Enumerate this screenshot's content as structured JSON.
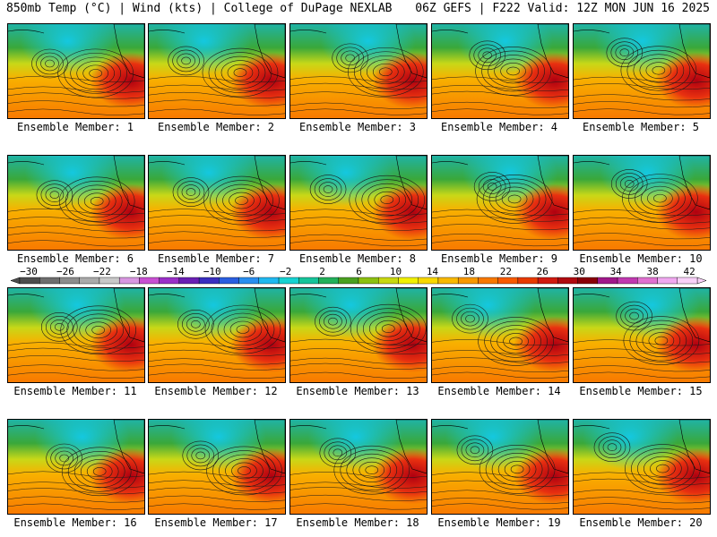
{
  "header": {
    "left_title": "850mb Temp (°C) | Wind (kts) | College of DuPage NEXLAB",
    "right_title": "06Z GEFS | F222 Valid: 12Z MON JUN 16 2025"
  },
  "members": [
    {
      "label": "Ensemble Member: 1"
    },
    {
      "label": "Ensemble Member: 2"
    },
    {
      "label": "Ensemble Member: 3"
    },
    {
      "label": "Ensemble Member: 4"
    },
    {
      "label": "Ensemble Member: 5"
    },
    {
      "label": "Ensemble Member: 6"
    },
    {
      "label": "Ensemble Member: 7"
    },
    {
      "label": "Ensemble Member: 8"
    },
    {
      "label": "Ensemble Member: 9"
    },
    {
      "label": "Ensemble Member: 10"
    },
    {
      "label": "Ensemble Member: 11"
    },
    {
      "label": "Ensemble Member: 12"
    },
    {
      "label": "Ensemble Member: 13"
    },
    {
      "label": "Ensemble Member: 14"
    },
    {
      "label": "Ensemble Member: 15"
    },
    {
      "label": "Ensemble Member: 16"
    },
    {
      "label": "Ensemble Member: 17"
    },
    {
      "label": "Ensemble Member: 18"
    },
    {
      "label": "Ensemble Member: 19"
    },
    {
      "label": "Ensemble Member: 20"
    }
  ],
  "colorbar": {
    "ticks": [
      "−30",
      "−26",
      "−22",
      "−18",
      "−14",
      "−10",
      "−6",
      "−2",
      "2",
      "6",
      "10",
      "14",
      "18",
      "22",
      "26",
      "30",
      "34",
      "38",
      "42"
    ],
    "colors": [
      "#4d4d4d",
      "#6e6e6e",
      "#8c8c8c",
      "#aaaaaa",
      "#c8c8c8",
      "#d896e0",
      "#c84fd2",
      "#9a2fc8",
      "#6a1fb4",
      "#3a2fc0",
      "#2a5ee0",
      "#2a8ef0",
      "#20b8f0",
      "#16d2d2",
      "#16c49a",
      "#22b05a",
      "#4aa020",
      "#8cc010",
      "#c8d810",
      "#f0f000",
      "#f8d800",
      "#f8b800",
      "#f89800",
      "#f87800",
      "#f85a00",
      "#e83a00",
      "#d01a10",
      "#b00a10",
      "#8a0008",
      "#a0188a",
      "#c038b0",
      "#e070d0",
      "#f0a8f0",
      "#f8d0f8"
    ]
  }
}
